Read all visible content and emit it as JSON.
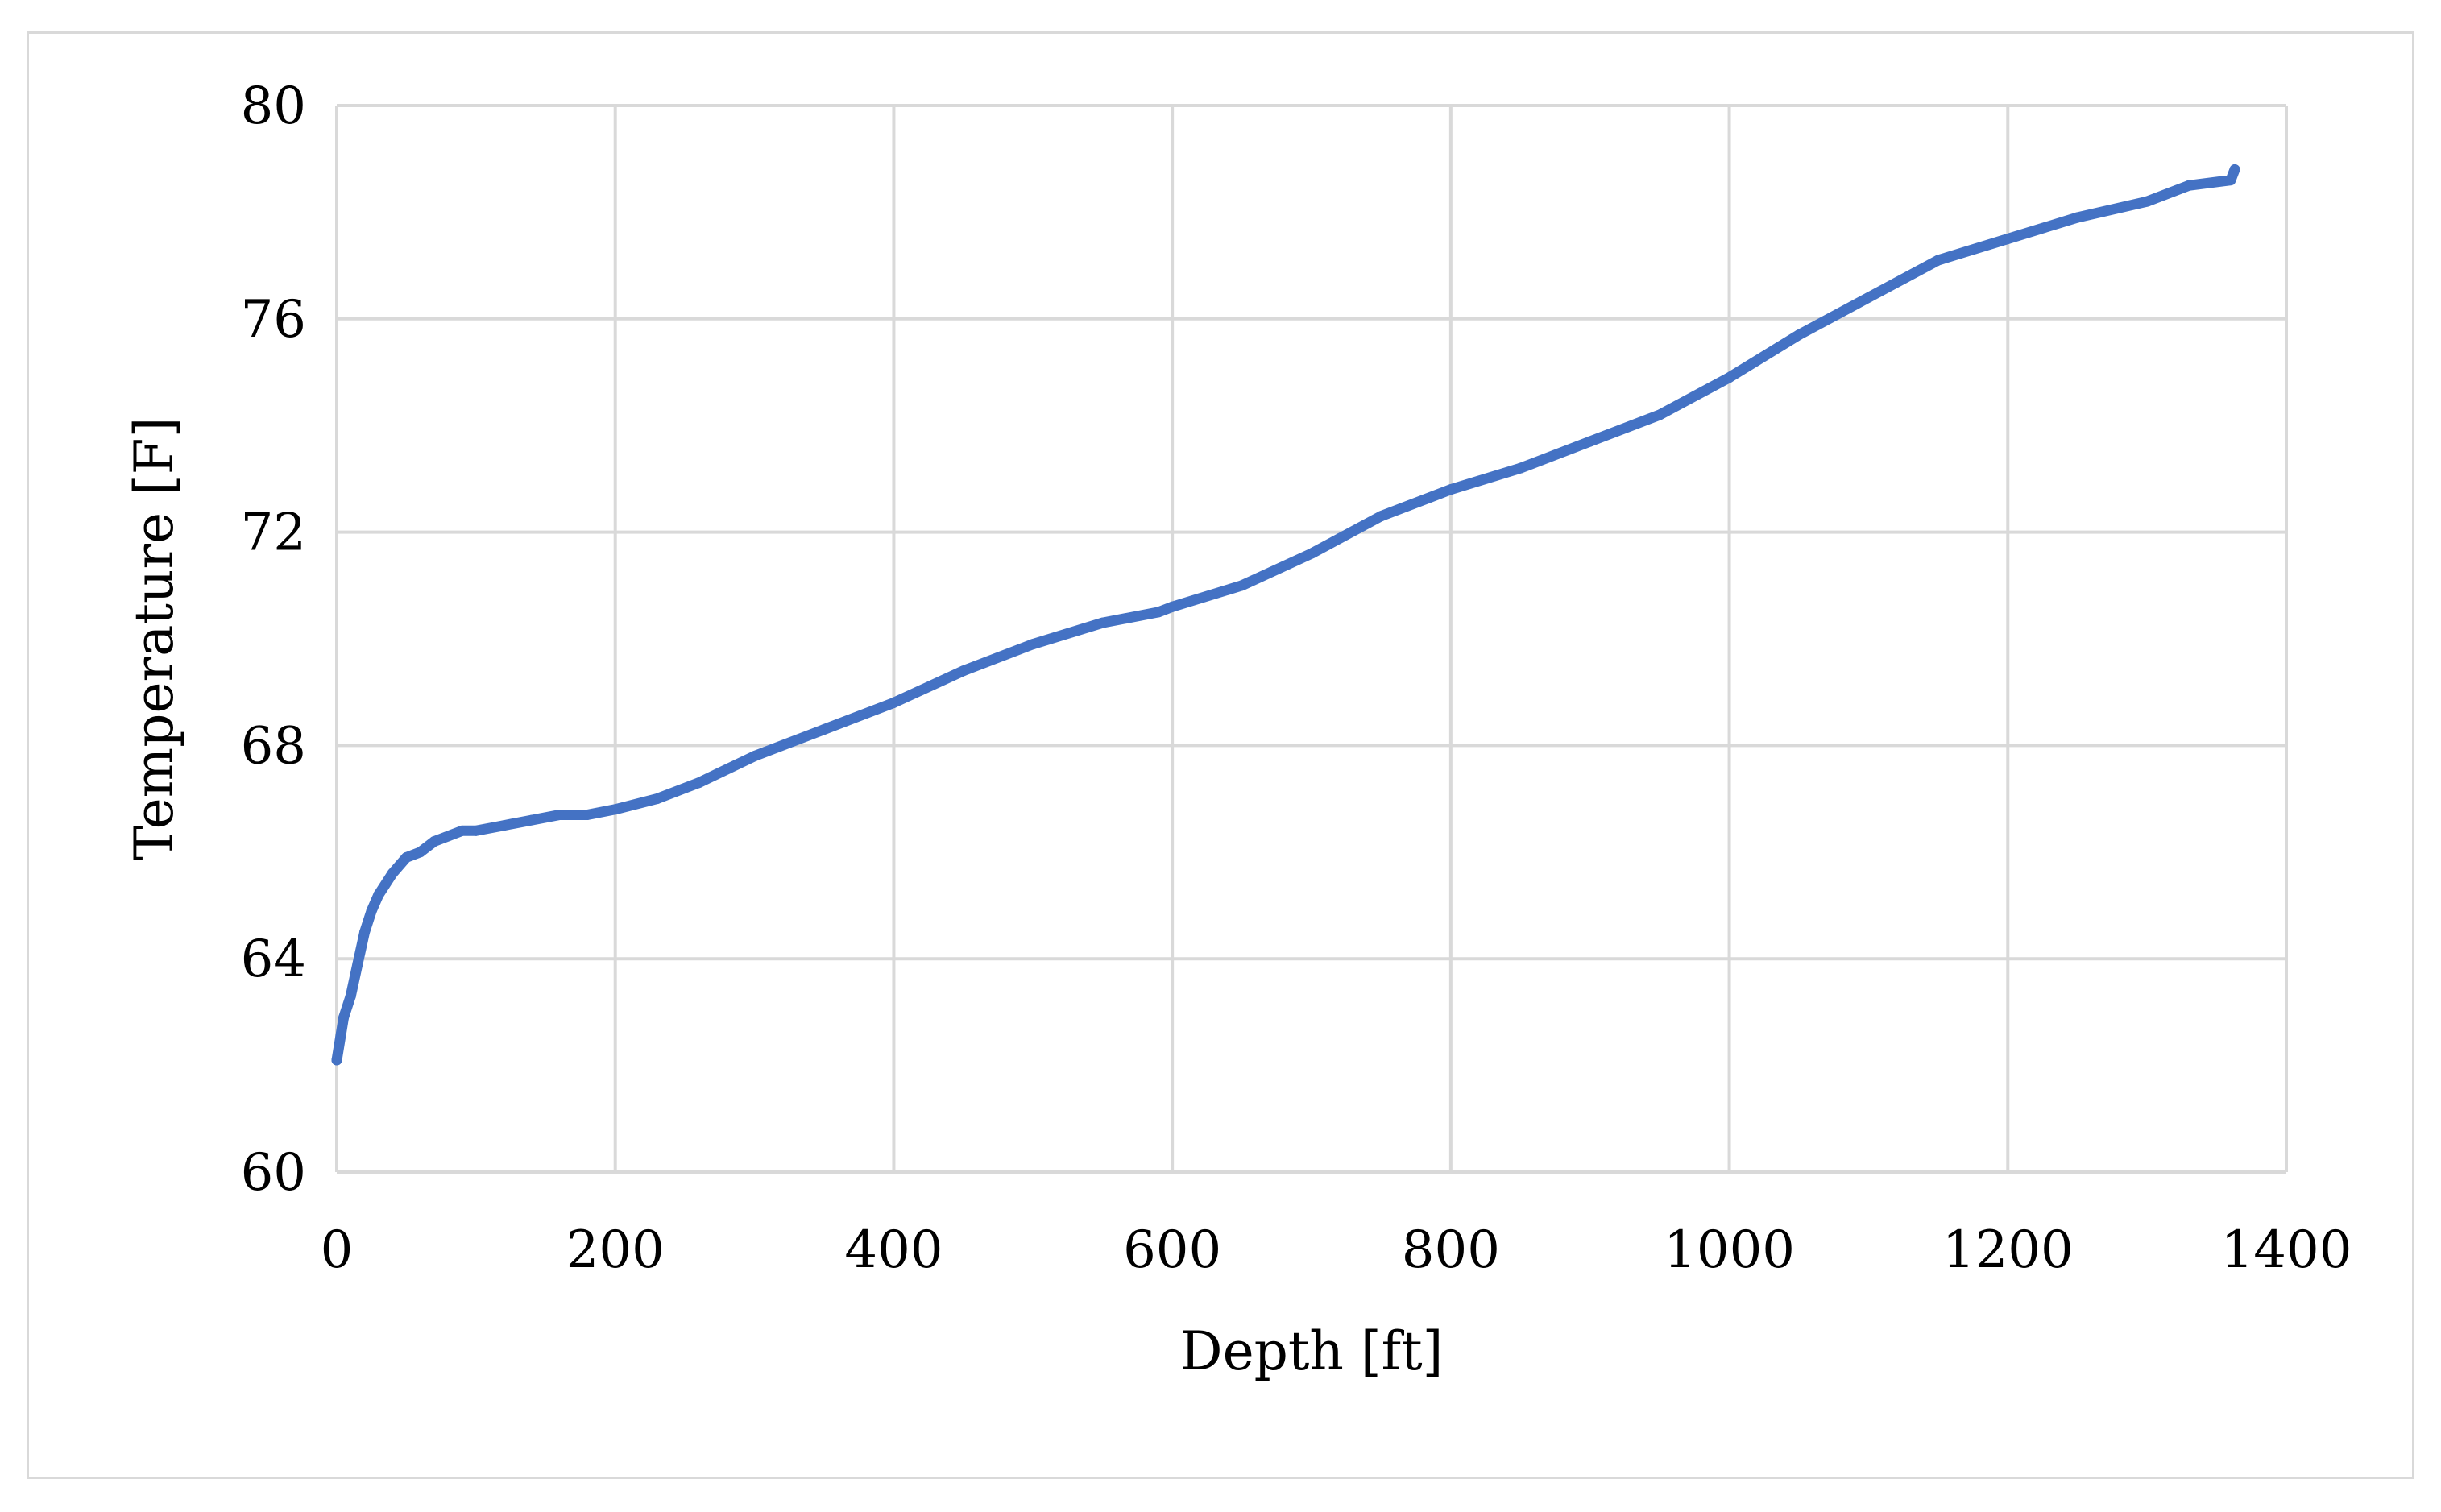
{
  "chart_data": {
    "type": "line",
    "title": "",
    "xlabel": "Depth [ft]",
    "ylabel": "Temperature [F]",
    "xlim": [
      0,
      1400
    ],
    "ylim": [
      60,
      80
    ],
    "x_ticks": [
      "0",
      "200",
      "400",
      "600",
      "800",
      "1000",
      "1200",
      "1400"
    ],
    "y_ticks": [
      "60",
      "64",
      "68",
      "72",
      "76",
      "80"
    ],
    "grid": true,
    "legend": "none",
    "series": [
      {
        "color": "#4472c4",
        "x": [
          0,
          5,
          10,
          15,
          20,
          25,
          30,
          40,
          50,
          60,
          70,
          80,
          90,
          100,
          120,
          140,
          160,
          180,
          200,
          230,
          260,
          300,
          350,
          400,
          450,
          500,
          550,
          590,
          600,
          650,
          700,
          750,
          800,
          850,
          900,
          950,
          1000,
          1050,
          1100,
          1150,
          1200,
          1250,
          1300,
          1330,
          1360,
          1363
        ],
        "y": [
          62.1,
          62.9,
          63.3,
          63.9,
          64.5,
          64.9,
          65.2,
          65.6,
          65.9,
          66.0,
          66.2,
          66.3,
          66.4,
          66.4,
          66.5,
          66.6,
          66.7,
          66.7,
          66.8,
          67.0,
          67.3,
          67.8,
          68.3,
          68.8,
          69.4,
          69.9,
          70.3,
          70.5,
          70.6,
          71.0,
          71.6,
          72.3,
          72.8,
          73.2,
          73.7,
          74.2,
          74.9,
          75.7,
          76.4,
          77.1,
          77.5,
          77.9,
          78.2,
          78.5,
          78.6,
          78.8
        ]
      }
    ]
  }
}
